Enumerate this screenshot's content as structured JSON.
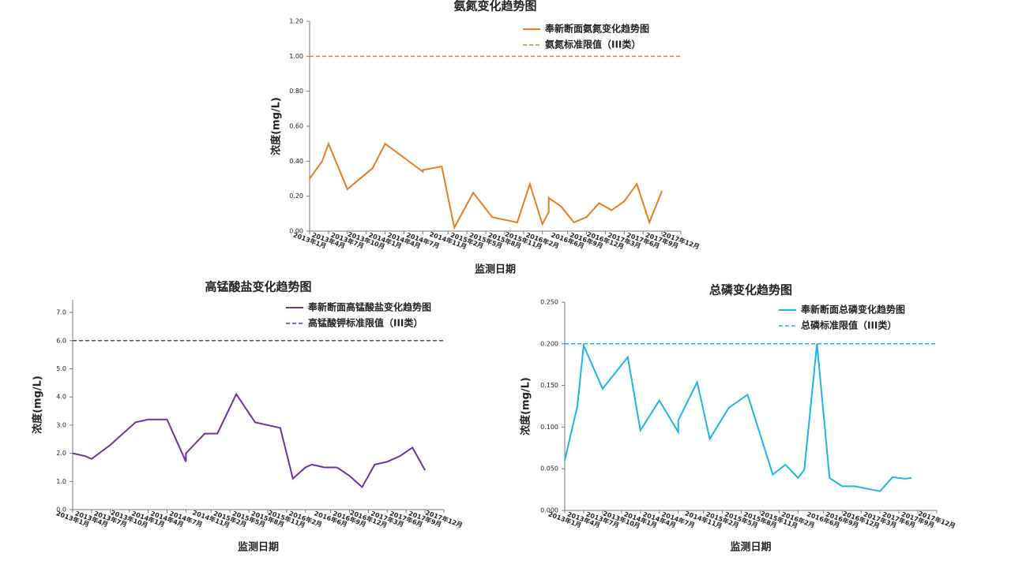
{
  "chart_data": [
    {
      "type": "line",
      "title": "氨氮变化趋势图",
      "x_label": "监测日期",
      "y_label": "浓度(mg/L)",
      "x": [
        "2013-01",
        "2013-03",
        "2013-04",
        "2013-07",
        "2013-11",
        "2014-01",
        "2014-07",
        "2014-07",
        "2014-10",
        "2014-12",
        "2015-03",
        "2015-06",
        "2015-10",
        "2015-12",
        "2016-02",
        "2016-03",
        "2016-03",
        "2016-05",
        "2016-07",
        "2016-09",
        "2016-11",
        "2017-01",
        "2017-03",
        "2017-05",
        "2017-07",
        "2017-09"
      ],
      "series": [
        {
          "name": "奉新断面氨氮变化趋势图",
          "color": "#e87d1e",
          "values": [
            0.3,
            0.4,
            0.5,
            0.24,
            0.36,
            0.5,
            0.34,
            0.35,
            0.37,
            0.02,
            0.22,
            0.08,
            0.05,
            0.27,
            0.04,
            0.11,
            0.19,
            0.14,
            0.05,
            0.08,
            0.16,
            0.12,
            0.17,
            0.27,
            0.05,
            0.23
          ]
        }
      ],
      "reference_line": {
        "name": "氨氮标准限值（III类）",
        "value": 1.0,
        "color": "#e87d1e",
        "style": "dashed"
      },
      "xlim": [
        "2013-01",
        "2017-12"
      ],
      "xticks": [
        {
          "value": "2013-01",
          "label": "2013年1月"
        },
        {
          "value": "2013-04",
          "label": "2013年4月"
        },
        {
          "value": "2013-07",
          "label": "2013年7月"
        },
        {
          "value": "2013-10",
          "label": "2013年10月"
        },
        {
          "value": "2014-01",
          "label": "2014年1月"
        },
        {
          "value": "2014-04",
          "label": "2014年4月"
        },
        {
          "value": "2014-07",
          "label": "2014年7月"
        },
        {
          "value": "2014-11",
          "label": "2014年11月"
        },
        {
          "value": "2015-02",
          "label": "2015年2月"
        },
        {
          "value": "2015-05",
          "label": "2015年5月"
        },
        {
          "value": "2015-08",
          "label": "2015年8月"
        },
        {
          "value": "2015-11",
          "label": "2015年11月"
        },
        {
          "value": "2016-02",
          "label": "2016年2月"
        },
        {
          "value": "2016-06",
          "label": "2016年6月"
        },
        {
          "value": "2016-09",
          "label": "2016年9月"
        },
        {
          "value": "2016-12",
          "label": "2016年12月"
        },
        {
          "value": "2017-03",
          "label": "2017年3月"
        },
        {
          "value": "2017-06",
          "label": "2017年6月"
        },
        {
          "value": "2017-09",
          "label": "2017年9月"
        },
        {
          "value": "2017-12",
          "label": "2017年12月"
        }
      ],
      "ylim": [
        0,
        1.2
      ],
      "yticks": [
        {
          "value": 0,
          "label": "0.00"
        },
        {
          "value": 0.2,
          "label": "0.20"
        },
        {
          "value": 0.4,
          "label": "0.40"
        },
        {
          "value": 0.6,
          "label": "0.60"
        },
        {
          "value": 0.8,
          "label": "0.80"
        },
        {
          "value": 1.0,
          "label": "1.00"
        },
        {
          "value": 1.2,
          "label": "1.20"
        }
      ]
    },
    {
      "type": "line",
      "title": "高锰酸盐变化趋势图",
      "x_label": "监测日期",
      "y_label": "浓度(mg/L)",
      "x": [
        "2013-01",
        "2013-03",
        "2013-04",
        "2013-07",
        "2013-11",
        "2014-01",
        "2014-04",
        "2014-07",
        "2014-07",
        "2014-10",
        "2014-12",
        "2015-03",
        "2015-06",
        "2015-10",
        "2015-12",
        "2016-02",
        "2016-03",
        "2016-04",
        "2016-05",
        "2016-07",
        "2016-09",
        "2016-11",
        "2017-01",
        "2017-03",
        "2017-05",
        "2017-07",
        "2017-09"
      ],
      "series": [
        {
          "name": "奉新断面高锰酸盐变化趋势图",
          "color": "#7030a0",
          "values": [
            2.0,
            1.9,
            1.8,
            2.3,
            3.1,
            3.2,
            3.2,
            1.7,
            2.0,
            2.7,
            2.7,
            4.1,
            3.1,
            2.9,
            1.1,
            1.5,
            1.6,
            1.55,
            1.5,
            1.5,
            1.2,
            0.8,
            1.6,
            1.7,
            1.9,
            2.2,
            1.4
          ]
        }
      ],
      "reference_line": {
        "name": "高锰酸钾标准限值（III类）",
        "value": 6.0,
        "color": "#7030a0",
        "style": "dashed"
      },
      "xlim": [
        "2013-01",
        "2017-12"
      ],
      "xticks": [
        {
          "value": "2013-01",
          "label": "2013年1月"
        },
        {
          "value": "2013-04",
          "label": "2013年4月"
        },
        {
          "value": "2013-07",
          "label": "2013年7月"
        },
        {
          "value": "2013-10",
          "label": "2013年10月"
        },
        {
          "value": "2014-01",
          "label": "2014年1月"
        },
        {
          "value": "2014-04",
          "label": "2014年4月"
        },
        {
          "value": "2014-07",
          "label": "2014年7月"
        },
        {
          "value": "2014-11",
          "label": "2014年11月"
        },
        {
          "value": "2015-02",
          "label": "2015年2月"
        },
        {
          "value": "2015-05",
          "label": "2015年5月"
        },
        {
          "value": "2015-08",
          "label": "2015年8月"
        },
        {
          "value": "2015-11",
          "label": "2015年11月"
        },
        {
          "value": "2016-02",
          "label": "2016年2月"
        },
        {
          "value": "2016-06",
          "label": "2016年6月"
        },
        {
          "value": "2016-09",
          "label": "2016年9月"
        },
        {
          "value": "2016-12",
          "label": "2016年12月"
        },
        {
          "value": "2017-03",
          "label": "2017年3月"
        },
        {
          "value": "2017-06",
          "label": "2017年6月"
        },
        {
          "value": "2017-09",
          "label": "2017年9月"
        },
        {
          "value": "2017-12",
          "label": "2017年12月"
        }
      ],
      "ylim": [
        0,
        7.45
      ],
      "yticks": [
        {
          "value": 0,
          "label": "0.0"
        },
        {
          "value": 1,
          "label": "1.0"
        },
        {
          "value": 2,
          "label": "2.0"
        },
        {
          "value": 3,
          "label": "3.0"
        },
        {
          "value": 4,
          "label": "4.0"
        },
        {
          "value": 5,
          "label": "5.0"
        },
        {
          "value": 6,
          "label": "6.0"
        },
        {
          "value": 7,
          "label": "7.0"
        }
      ]
    },
    {
      "type": "line",
      "title": "总磷变化趋势图",
      "x_label": "监测日期",
      "y_label": "浓度(mg/L)",
      "x": [
        "2013-01",
        "2013-03",
        "2013-04",
        "2013-07",
        "2013-11",
        "2014-01",
        "2014-04",
        "2014-07",
        "2014-07",
        "2014-10",
        "2014-12",
        "2015-03",
        "2015-06",
        "2015-10",
        "2015-12",
        "2016-02",
        "2016-03",
        "2016-05",
        "2016-07",
        "2016-09",
        "2016-11",
        "2017-01",
        "2017-03",
        "2017-05",
        "2017-07",
        "2017-08"
      ],
      "series": [
        {
          "name": "奉新断面总磷变化趋势图",
          "color": "#1eb4e6",
          "values": [
            0.06,
            0.125,
            0.198,
            0.146,
            0.184,
            0.096,
            0.132,
            0.094,
            0.108,
            0.154,
            0.086,
            0.123,
            0.139,
            0.043,
            0.055,
            0.039,
            0.049,
            0.2,
            0.039,
            0.029,
            0.029,
            0.026,
            0.023,
            0.04,
            0.038,
            0.039
          ]
        }
      ],
      "reference_line": {
        "name": "总磷标准限值（III类）",
        "value": 0.2,
        "color": "#1eb4e6",
        "style": "dashed"
      },
      "xlim": [
        "2013-01",
        "2017-12"
      ],
      "xticks": [
        {
          "value": "2013-01",
          "label": "2013年1月"
        },
        {
          "value": "2013-04",
          "label": "2013年4月"
        },
        {
          "value": "2013-07",
          "label": "2013年7月"
        },
        {
          "value": "2013-10",
          "label": "2013年10月"
        },
        {
          "value": "2014-01",
          "label": "2014年1月"
        },
        {
          "value": "2014-04",
          "label": "2014年4月"
        },
        {
          "value": "2014-07",
          "label": "2014年7月"
        },
        {
          "value": "2014-11",
          "label": "2014年11月"
        },
        {
          "value": "2015-02",
          "label": "2015年2月"
        },
        {
          "value": "2015-05",
          "label": "2015年5月"
        },
        {
          "value": "2015-08",
          "label": "2015年8月"
        },
        {
          "value": "2015-11",
          "label": "2015年11月"
        },
        {
          "value": "2016-02",
          "label": "2016年2月"
        },
        {
          "value": "2016-06",
          "label": "2016年6月"
        },
        {
          "value": "2016-09",
          "label": "2016年9月"
        },
        {
          "value": "2016-12",
          "label": "2016年12月"
        },
        {
          "value": "2017-03",
          "label": "2017年3月"
        },
        {
          "value": "2017-06",
          "label": "2017年6月"
        },
        {
          "value": "2017-09",
          "label": "2017年9月"
        },
        {
          "value": "2017-12",
          "label": "2017年12月"
        }
      ],
      "ylim": [
        0,
        0.25
      ],
      "yticks": [
        {
          "value": 0,
          "label": "0.000"
        },
        {
          "value": 0.05,
          "label": "0.050"
        },
        {
          "value": 0.1,
          "label": "0.100"
        },
        {
          "value": 0.15,
          "label": "0.150"
        },
        {
          "value": 0.2,
          "label": "0.200"
        },
        {
          "value": 0.25,
          "label": "0.250"
        }
      ]
    }
  ]
}
